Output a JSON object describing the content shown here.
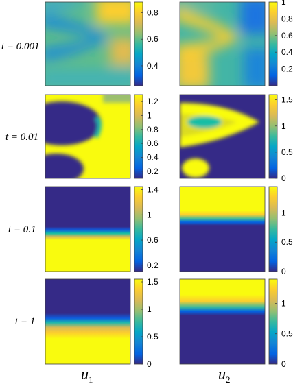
{
  "figure": {
    "row_labels": [
      "t = 0.001",
      "t = 0.01",
      "t = 0.1",
      "t = 1"
    ],
    "column_titles": [
      {
        "base": "u",
        "sub": "1"
      },
      {
        "base": "u",
        "sub": "2"
      }
    ]
  },
  "chart_data": [
    {
      "type": "heatmap",
      "panel": "u1 at t = 0.001",
      "colormap": "parula",
      "grid": false,
      "clim": [
        0.25,
        0.88
      ],
      "colorbar_ticks": [
        {
          "value": 0.4,
          "label": "0.4"
        },
        {
          "value": 0.6,
          "label": "0.6"
        },
        {
          "value": 0.8,
          "label": "0.8"
        }
      ],
      "pattern": "two blue branches meeting in an arrowhead at right-centre; yellow near upper right and centre right, light cyan elsewhere"
    },
    {
      "type": "heatmap",
      "panel": "u2 at t = 0.001",
      "colormap": "parula",
      "grid": false,
      "clim": [
        0.0,
        1.0
      ],
      "colorbar_ticks": [
        {
          "value": 0.2,
          "label": "0.2"
        },
        {
          "value": 0.4,
          "label": "0.4"
        },
        {
          "value": 0.6,
          "label": "0.6"
        },
        {
          "value": 0.8,
          "label": "0.8"
        },
        {
          "value": 1.0,
          "label": "1"
        }
      ],
      "pattern": "yellow arrowhead pointing right at upper-centre and yellow lower-left, fading to blue toward the right edge"
    },
    {
      "type": "heatmap",
      "panel": "u1 at t = 0.01",
      "colormap": "parula",
      "grid": false,
      "clim": [
        0.1,
        1.3
      ],
      "colorbar_ticks": [
        {
          "value": 0.2,
          "label": "0.2"
        },
        {
          "value": 0.4,
          "label": "0.4"
        },
        {
          "value": 0.6,
          "label": "0.6"
        },
        {
          "value": 0.8,
          "label": "0.8"
        },
        {
          "value": 1.0,
          "label": "1"
        },
        {
          "value": 1.2,
          "label": "1.2"
        }
      ],
      "pattern": "dark blue oval on the left and dark blue lower-left blob, surrounded by yellow"
    },
    {
      "type": "heatmap",
      "panel": "u2 at t = 0.01",
      "colormap": "parula",
      "grid": false,
      "clim": [
        0.0,
        1.6
      ],
      "colorbar_ticks": [
        {
          "value": 0.0,
          "label": "0"
        },
        {
          "value": 0.5,
          "label": "0.5"
        },
        {
          "value": 1.0,
          "label": "1"
        },
        {
          "value": 1.5,
          "label": "1.5"
        }
      ],
      "pattern": "yellow chevron pointing right in the upper half, small yellow patch lower-left, dark blue elsewhere"
    },
    {
      "type": "heatmap",
      "panel": "u1 at t = 0.1",
      "colormap": "parula",
      "grid": false,
      "clim": [
        0.1,
        1.45
      ],
      "colorbar_ticks": [
        {
          "value": 0.2,
          "label": "0.2"
        },
        {
          "value": 0.6,
          "label": "0.6"
        },
        {
          "value": 1.0,
          "label": "1"
        },
        {
          "value": 1.4,
          "label": "1.4"
        }
      ],
      "pattern": "dark blue top half, sharp transition near 0.55 of height, yellow bottom"
    },
    {
      "type": "heatmap",
      "panel": "u2 at t = 0.1",
      "colormap": "parula",
      "grid": false,
      "clim": [
        0.0,
        1.45
      ],
      "colorbar_ticks": [
        {
          "value": 0.0,
          "label": "0"
        },
        {
          "value": 0.5,
          "label": "0.5"
        },
        {
          "value": 1.0,
          "label": "1"
        }
      ],
      "pattern": "yellow top band, sharp transition near 0.40 of height, dark blue bottom"
    },
    {
      "type": "heatmap",
      "panel": "u1 at t = 1",
      "colormap": "parula",
      "grid": false,
      "clim": [
        0.0,
        1.55
      ],
      "colorbar_ticks": [
        {
          "value": 0.0,
          "label": "0"
        },
        {
          "value": 0.5,
          "label": "0.5"
        },
        {
          "value": 1.0,
          "label": "1"
        },
        {
          "value": 1.5,
          "label": "1.5"
        }
      ],
      "pattern": "dark blue top half, transition near 0.52 of height, yellow bottom"
    },
    {
      "type": "heatmap",
      "panel": "u2 at t = 1",
      "colormap": "parula",
      "grid": false,
      "clim": [
        0.0,
        1.4
      ],
      "colorbar_ticks": [
        {
          "value": 0.0,
          "label": "0"
        },
        {
          "value": 0.5,
          "label": "0.5"
        },
        {
          "value": 1.0,
          "label": "1"
        }
      ],
      "pattern": "yellow top band, transition near 0.38 of height, dark blue bottom"
    }
  ]
}
